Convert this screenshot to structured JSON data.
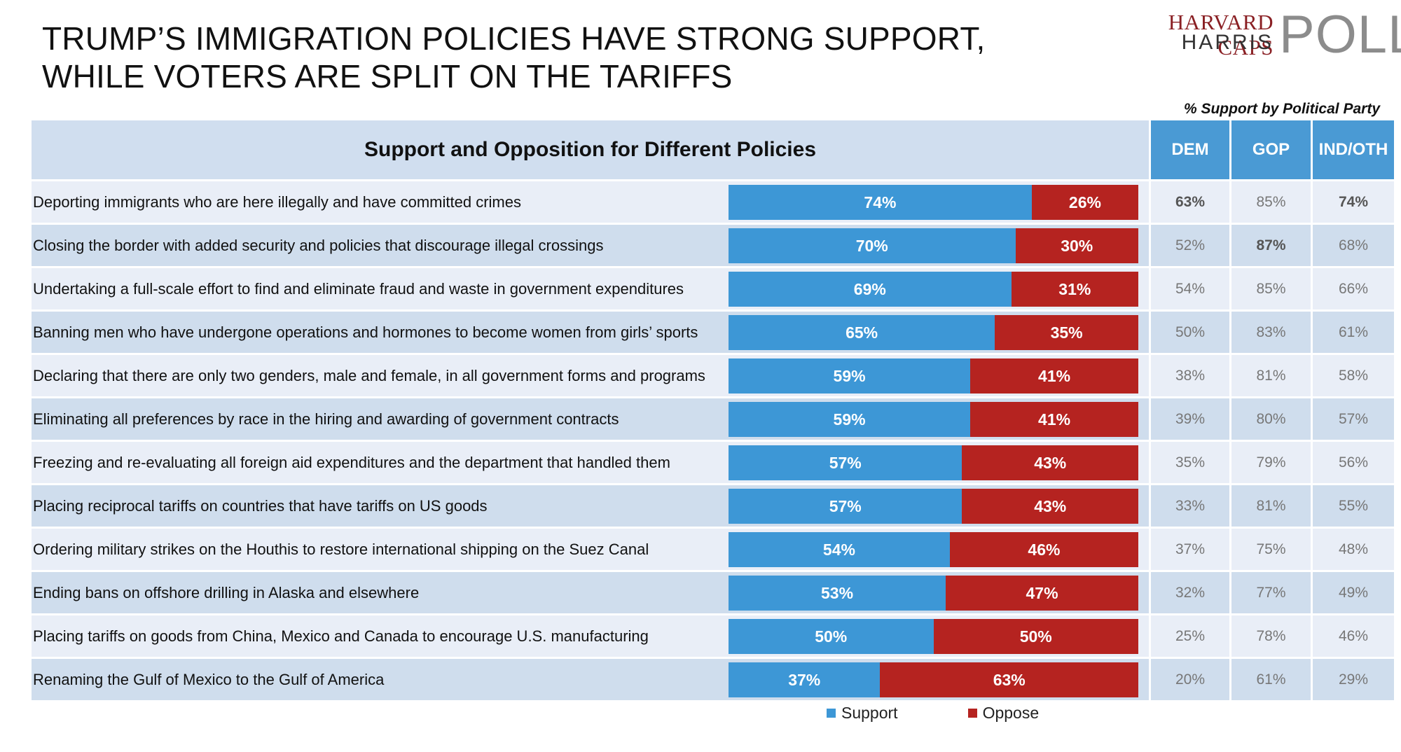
{
  "title": "TRUMP’S IMMIGRATION POLICIES HAVE STRONG SUPPORT, WHILE VOTERS ARE SPLIT ON THE TARIFFS",
  "logo": {
    "line1": "HARVARD CAPS",
    "line2": "HARRIS",
    "line3": "POLL"
  },
  "party_caption": "% Support by Political Party",
  "colors": {
    "support": "#3d97d6",
    "oppose": "#b52320",
    "header_bg": "#d0deef",
    "party_header": "#4a9ad4"
  },
  "chart_data": {
    "type": "bar",
    "orientation": "horizontal",
    "stacked": true,
    "normalized": true,
    "title": "Support and Opposition for Different Policies",
    "xlim": [
      0,
      100
    ],
    "categories": [
      "Deporting immigrants who are here illegally and have committed crimes",
      "Closing the border with added security and policies that discourage illegal crossings",
      "Undertaking a full-scale effort to find and eliminate fraud and waste in government expenditures",
      "Banning men who have undergone operations and hormones to become women from girls’ sports",
      "Declaring that there are only two genders, male and female, in all government forms and programs",
      "Eliminating all preferences by race in the hiring and awarding of government contracts",
      "Freezing and re-evaluating all foreign aid expenditures and the department that handled them",
      "Placing reciprocal tariffs on countries that have tariffs on US goods",
      "Ordering military strikes on the Houthis to restore international shipping on the Suez Canal",
      "Ending bans on offshore drilling in Alaska and elsewhere",
      "Placing tariffs on goods from China, Mexico and Canada to encourage U.S. manufacturing",
      "Renaming the Gulf of Mexico to the Gulf of America"
    ],
    "series": [
      {
        "name": "Support",
        "values": [
          74,
          70,
          69,
          65,
          59,
          59,
          57,
          57,
          54,
          53,
          50,
          37
        ]
      },
      {
        "name": "Oppose",
        "values": [
          26,
          30,
          31,
          35,
          41,
          41,
          43,
          43,
          46,
          47,
          50,
          63
        ]
      }
    ],
    "legend": [
      "Support",
      "Oppose"
    ],
    "legend_position": "bottom",
    "party_table": {
      "columns": [
        "DEM",
        "GOP",
        "IND/OTH"
      ],
      "rows": [
        [
          "63%",
          "85%",
          "74%"
        ],
        [
          "52%",
          "87%",
          "68%"
        ],
        [
          "54%",
          "85%",
          "66%"
        ],
        [
          "50%",
          "83%",
          "61%"
        ],
        [
          "38%",
          "81%",
          "58%"
        ],
        [
          "39%",
          "80%",
          "57%"
        ],
        [
          "35%",
          "79%",
          "56%"
        ],
        [
          "33%",
          "81%",
          "55%"
        ],
        [
          "37%",
          "75%",
          "48%"
        ],
        [
          "32%",
          "77%",
          "49%"
        ],
        [
          "25%",
          "78%",
          "46%"
        ],
        [
          "20%",
          "61%",
          "29%"
        ]
      ],
      "bold_cells": [
        [
          0,
          0
        ],
        [
          0,
          2
        ],
        [
          1,
          1
        ]
      ]
    }
  }
}
